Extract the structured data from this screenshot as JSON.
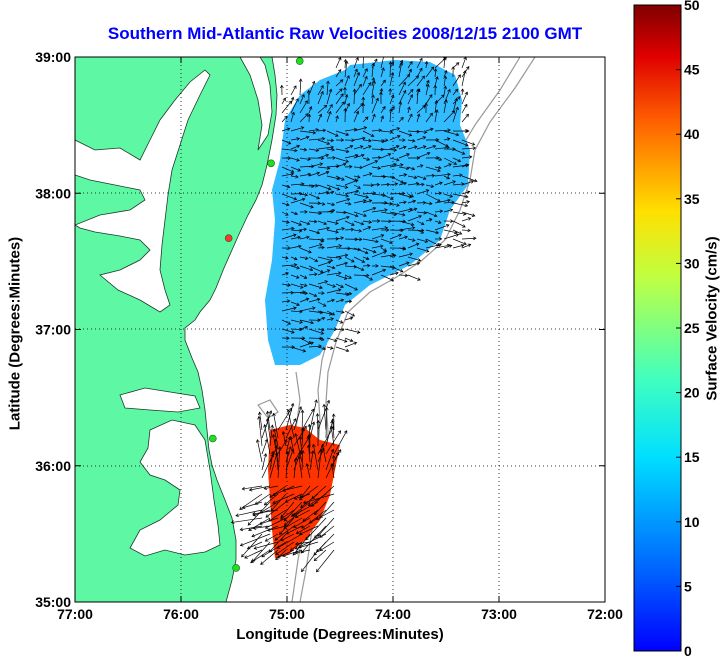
{
  "title": "Southern Mid-Atlantic Raw Velocities 2008/12/15 2100 GMT",
  "x_axis": {
    "label": "Longitude (Degrees:Minutes)",
    "ticks": [
      "77:00",
      "76:00",
      "75:00",
      "74:00",
      "73:00",
      "72:00"
    ]
  },
  "y_axis": {
    "label": "Latitude (Degrees:Minutes)",
    "ticks": [
      "39:00",
      "38:00",
      "37:00",
      "36:00",
      "35:00"
    ]
  },
  "colorbar": {
    "label": "Surface Velocity (cm/s)",
    "ticks": [
      "50",
      "45",
      "40",
      "35",
      "30",
      "25",
      "20",
      "15",
      "10",
      "5",
      "0"
    ],
    "range": [
      0,
      50
    ],
    "colormap": "jet"
  },
  "colors": {
    "land": "#5ef7a4",
    "water": "#ffffff",
    "title": "#0000ff",
    "bathymetry": "#999999",
    "station": "#22dd22",
    "station_highlight": "#ff3333"
  },
  "map_extent": {
    "lon": [
      -77,
      -72
    ],
    "lat": [
      35,
      39
    ]
  },
  "grid": "dotted",
  "stations": [
    {
      "lon": -74.88,
      "lat": 38.97,
      "status": "active"
    },
    {
      "lon": -75.15,
      "lat": 38.22,
      "status": "active"
    },
    {
      "lon": -75.55,
      "lat": 37.67,
      "status": "highlight"
    },
    {
      "lon": -75.7,
      "lat": 36.2,
      "status": "active"
    },
    {
      "lon": -75.48,
      "lat": 35.25,
      "status": "active"
    }
  ]
}
